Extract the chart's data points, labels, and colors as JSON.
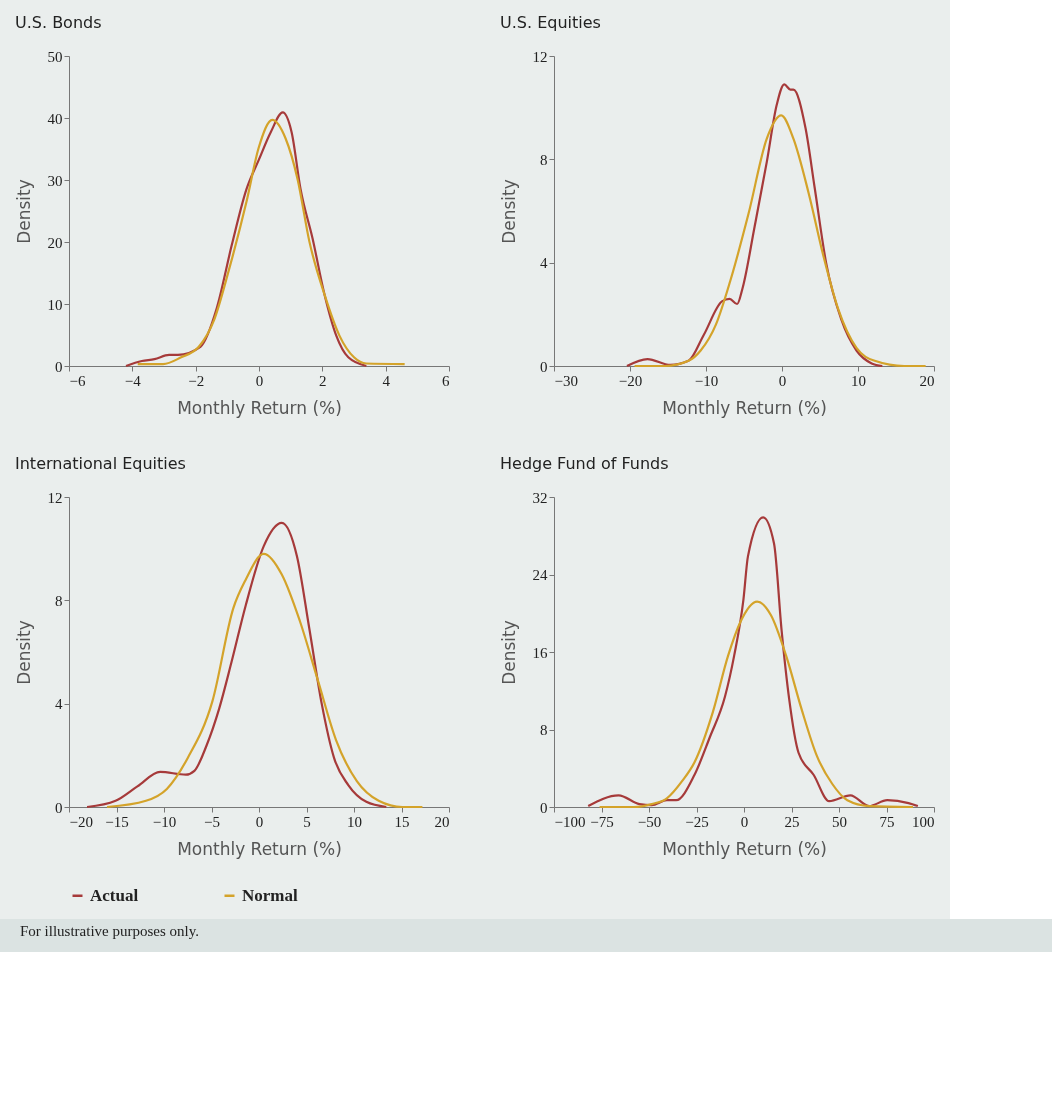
{
  "chart_data": [
    {
      "type": "line",
      "title": "U.S. Bonds",
      "xlabel": "Monthly Return (%)",
      "ylabel": "Density",
      "xlim": [
        -6,
        6
      ],
      "xticks": [
        -6,
        -4,
        -2,
        0,
        2,
        4,
        6
      ],
      "ylim": [
        0,
        50
      ],
      "yticks": [
        0,
        10,
        20,
        30,
        40,
        50
      ],
      "grid": false,
      "legend": "bottom",
      "marker": "none",
      "line_style": "solid",
      "series": [
        {
          "name": "Actual",
          "color": "#a63a3a",
          "x": [
            -4.2,
            -3.7,
            -3.3,
            -2.84,
            -2.56,
            -1.85,
            -1.33,
            -0.86,
            -0.39,
            -0.01,
            0.37,
            0.75,
            1.03,
            1.31,
            1.69,
            2.07,
            2.44,
            2.82,
            3.39
          ],
          "values": [
            0,
            0.8,
            1.1,
            1.8,
            1.8,
            3.1,
            9.4,
            19.5,
            28.6,
            33.2,
            37.7,
            40.9,
            37.7,
            28.6,
            20.6,
            11.5,
            4.9,
            1.4,
            0
          ]
        },
        {
          "name": "Normal",
          "color": "#d4a32a",
          "x": [
            -3.83,
            -3.03,
            -2.46,
            -1.9,
            -1.42,
            -0.95,
            -0.39,
            -0.01,
            0.42,
            0.84,
            1.22,
            1.59,
            2.07,
            2.54,
            3.0,
            3.39,
            4.6
          ],
          "values": [
            0.3,
            0.3,
            1.4,
            3.1,
            7.4,
            15.5,
            26.6,
            35.2,
            39.7,
            36.7,
            30.1,
            20.1,
            11.5,
            4.9,
            1.4,
            0.4,
            0.3
          ]
        }
      ]
    },
    {
      "type": "line",
      "title": "U.S. Equities",
      "xlabel": "Monthly Return (%)",
      "ylabel": "Density",
      "xlim": [
        -30,
        20
      ],
      "xticks": [
        -30,
        -20,
        -10,
        0,
        10,
        20
      ],
      "ylim": [
        0,
        12
      ],
      "yticks": [
        0,
        4,
        8,
        12
      ],
      "grid": false,
      "legend": "bottom",
      "marker": "none",
      "line_style": "solid",
      "series": [
        {
          "name": "Actual",
          "color": "#a63a3a",
          "x": [
            -20.4,
            -17.7,
            -14.7,
            -12.3,
            -10.3,
            -7.9,
            -6.9,
            -5.9,
            -5.2,
            -3.6,
            -2.0,
            -0.7,
            0.3,
            1.1,
            1.5,
            3.1,
            4.3,
            5.8,
            7.8,
            9.8,
            11.8,
            13.2
          ],
          "values": [
            0,
            0.27,
            0.04,
            0.2,
            1.2,
            2.5,
            2.6,
            2.4,
            3.0,
            5.4,
            7.9,
            10.1,
            10.9,
            10.7,
            10.7,
            9.2,
            6.9,
            4.0,
            1.8,
            0.6,
            0.1,
            0
          ]
        },
        {
          "name": "Normal",
          "color": "#d4a32a",
          "x": [
            -19.4,
            -15.4,
            -12.3,
            -10.7,
            -8.7,
            -6.8,
            -4.4,
            -2.0,
            -0.1,
            1.5,
            3.5,
            5.5,
            7.4,
            9.8,
            12.2,
            16.1,
            18.9
          ],
          "values": [
            0,
            0,
            0.2,
            0.6,
            1.6,
            3.3,
            5.9,
            8.8,
            9.7,
            8.8,
            6.7,
            4.2,
            2.2,
            0.7,
            0.2,
            0,
            0
          ]
        }
      ]
    },
    {
      "type": "line",
      "title": "International Equities",
      "xlabel": "Monthly Return (%)",
      "ylabel": "Density",
      "xlim": [
        -20,
        20
      ],
      "xticks": [
        -20,
        -15,
        -10,
        -5,
        0,
        5,
        10,
        15,
        20
      ],
      "ylim": [
        0,
        12
      ],
      "yticks": [
        0,
        4,
        8,
        12
      ],
      "grid": false,
      "legend": "bottom",
      "marker": "none",
      "line_style": "solid",
      "series": [
        {
          "name": "Actual",
          "color": "#a63a3a",
          "x": [
            -18.1,
            -15.1,
            -12.8,
            -10.4,
            -7.7,
            -6.8,
            -5.5,
            -4.2,
            -2.9,
            -1.4,
            0.5,
            2.4,
            4.0,
            5.3,
            6.6,
            7.9,
            9.4,
            11.3,
            13.4
          ],
          "values": [
            0,
            0.24,
            0.8,
            1.36,
            1.25,
            1.4,
            2.4,
            3.8,
            5.6,
            7.8,
            10.1,
            11.0,
            9.7,
            6.9,
            4.0,
            1.9,
            0.85,
            0.2,
            0
          ]
        },
        {
          "name": "Normal",
          "color": "#d4a32a",
          "x": [
            -16.0,
            -11.9,
            -9.7,
            -7.5,
            -4.9,
            -2.7,
            -1.4,
            0.5,
            2.4,
            4.3,
            6.2,
            8.1,
            10.3,
            12.6,
            15.1,
            17.2
          ],
          "values": [
            0,
            0.24,
            0.7,
            1.9,
            4.1,
            7.7,
            8.8,
            9.8,
            9.0,
            7.2,
            4.9,
            2.6,
            1.0,
            0.24,
            0,
            0
          ]
        }
      ]
    },
    {
      "type": "line",
      "title": "Hedge Fund of Funds",
      "xlabel": "Monthly Return (%)",
      "ylabel": "Density",
      "xlim": [
        -100,
        100
      ],
      "xticks": [
        -100,
        -75,
        -50,
        -25,
        0,
        25,
        50,
        75,
        100
      ],
      "ylim": [
        0,
        32
      ],
      "yticks": [
        0,
        8,
        16,
        24,
        32
      ],
      "grid": false,
      "legend": "bottom",
      "marker": "none",
      "line_style": "solid",
      "annotations": [
        "For illustrative purposes only."
      ],
      "series": [
        {
          "name": "Actual",
          "color": "#a63a3a",
          "x": [
            -82,
            -66,
            -55,
            -48.6,
            -40.6,
            -35.7,
            -26.1,
            -18,
            -10,
            -5.2,
            -0.3,
            2.1,
            10.1,
            15.8,
            19.8,
            23.8,
            28.7,
            36.7,
            44.8,
            56,
            65.8,
            75.4,
            86.6,
            91.5
          ],
          "values": [
            0.1,
            1.2,
            0.3,
            0.2,
            0.7,
            0.7,
            3.3,
            7.2,
            11.4,
            15.6,
            21.4,
            25.9,
            29.9,
            27.2,
            18.2,
            11.1,
            5.6,
            3.3,
            0.6,
            1.2,
            0.1,
            0.7,
            0.4,
            0.1
          ]
        },
        {
          "name": "Normal",
          "color": "#d4a32a",
          "x": [
            -76,
            -58,
            -48.6,
            -40.6,
            -32.5,
            -26.1,
            -16.4,
            -8.4,
            -1.9,
            6.9,
            14.2,
            22.2,
            30.3,
            38.3,
            46.4,
            54.4,
            65.8,
            89
          ],
          "values": [
            0,
            0,
            0.3,
            0.9,
            2.7,
            4.6,
            9.8,
            15.6,
            19.1,
            21.2,
            19.8,
            15.6,
            10.1,
            5.3,
            2.4,
            0.7,
            0.1,
            0
          ]
        }
      ]
    }
  ]
}
